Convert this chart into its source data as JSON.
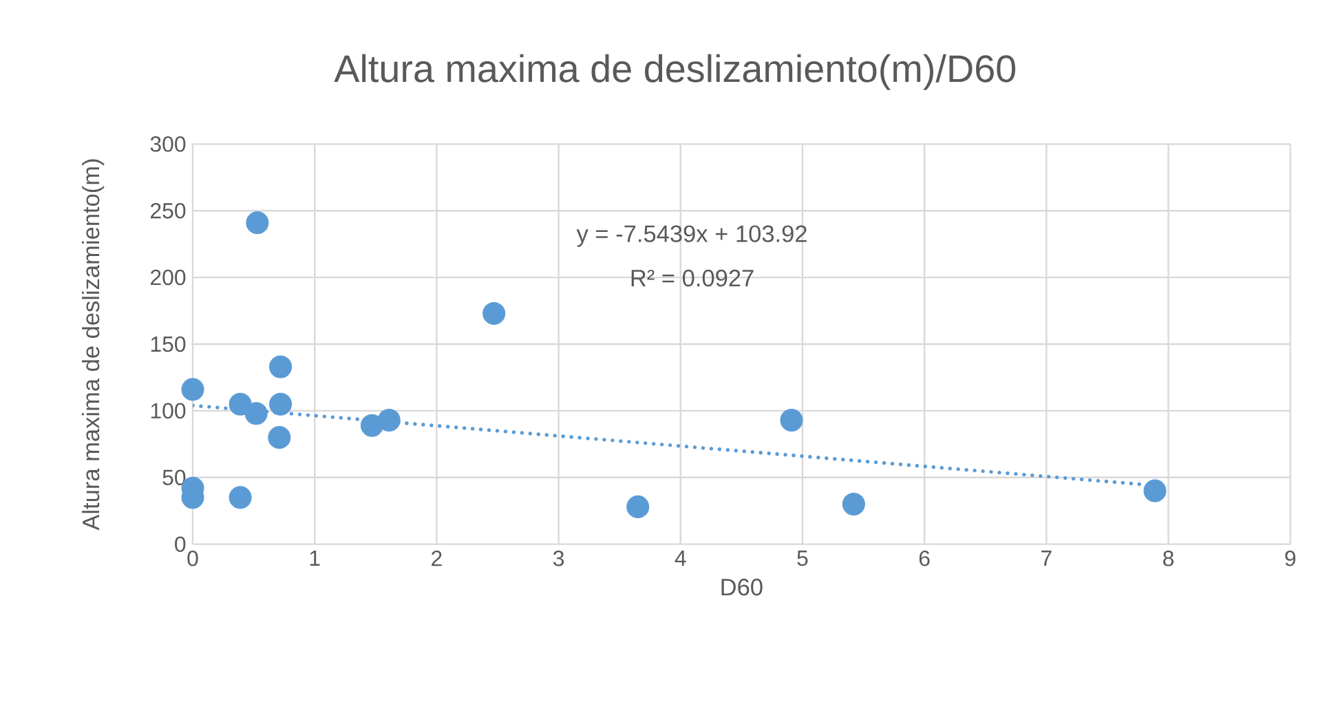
{
  "chart_data": {
    "type": "scatter",
    "title": "Altura maxima de deslizamiento(m)/D60",
    "xlabel": "D60",
    "ylabel": "Altura maxima de deslizamiento(m)",
    "series": [
      {
        "color": "#5b9bd5",
        "marker": "circle",
        "x": [
          0,
          0,
          0,
          0.39,
          0.39,
          0.53,
          0.52,
          0.72,
          0.72,
          0.71,
          1.47,
          1.61,
          2.47,
          3.65,
          4.91,
          5.42,
          7.89
        ],
        "values": [
          116,
          42,
          35,
          105,
          35,
          241,
          98,
          133,
          105,
          80,
          89,
          93,
          173,
          28,
          93,
          30,
          40
        ]
      },
      {
        "type": "line",
        "color": "#5b9bd5",
        "marker": "none",
        "line_style": "dotted",
        "x": [
          0,
          7.89
        ],
        "values": [
          104,
          44
        ]
      }
    ],
    "annotations": [
      "y = -7.5439x + 103.92",
      "R² = 0.0927"
    ],
    "xlim": [
      0,
      9
    ],
    "xticks": [
      0,
      1,
      2,
      3,
      4,
      5,
      6,
      7,
      8,
      9
    ],
    "ylim": [
      0,
      300
    ],
    "yticks": [
      0,
      50,
      100,
      150,
      200,
      250,
      300
    ],
    "grid": true
  }
}
